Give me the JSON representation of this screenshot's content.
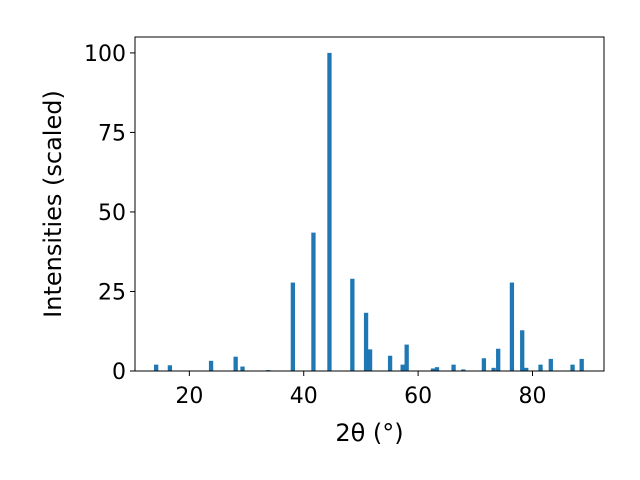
{
  "chart_data": {
    "type": "bar",
    "title": "",
    "xlabel": "2θ (°)",
    "ylabel": "Intensities (scaled)",
    "xlim": [
      10.5,
      92.5
    ],
    "ylim": [
      0,
      105
    ],
    "xticks": [
      20,
      40,
      60,
      80
    ],
    "yticks": [
      0,
      25,
      50,
      75,
      100
    ],
    "grid": false,
    "bar_width": 0.75,
    "bar_color": "#1f77b4",
    "series": [
      {
        "x": [
          14.2,
          16.6,
          23.8,
          28.1,
          29.3,
          33.8,
          38.1,
          41.7,
          44.5,
          48.5,
          50.9,
          51.6,
          55.1,
          57.3,
          58.0,
          62.6,
          63.3,
          66.2,
          67.9,
          71.5,
          73.2,
          74.0,
          76.4,
          78.2,
          78.9,
          81.4,
          83.2,
          87.0,
          88.6
        ],
        "values": [
          2.0,
          1.8,
          3.2,
          4.5,
          1.4,
          0.3,
          27.8,
          43.5,
          100,
          29.0,
          18.3,
          6.8,
          4.8,
          2.0,
          8.3,
          0.8,
          1.2,
          2.0,
          0.5,
          4.0,
          1.0,
          7.0,
          27.8,
          12.8,
          1.0,
          2.0,
          3.8,
          2.0,
          3.8
        ]
      }
    ]
  }
}
